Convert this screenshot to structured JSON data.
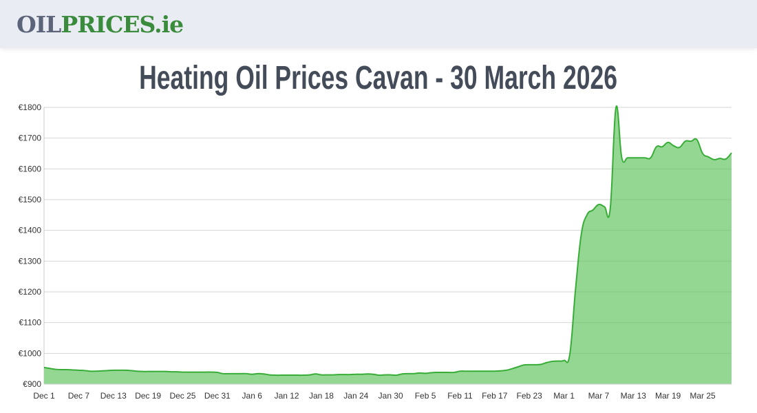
{
  "header": {
    "logo_part1": "OIL",
    "logo_part2": "PRICES.ie"
  },
  "page_title": "Heating Oil Prices Cavan - 30 March 2026",
  "colors": {
    "line": "#37ad37",
    "fill": "#93d792",
    "grid": "#e5e5e5",
    "header_bg": "#e9ecf3"
  },
  "chart_data": {
    "type": "area",
    "title": "",
    "xlabel": "",
    "ylabel": "",
    "x_start": "Dec 1",
    "x_end": "Mar 30",
    "ylim": [
      900,
      1800
    ],
    "grid": true,
    "legend": "none",
    "y_ticks": [
      "€900",
      "€1000",
      "€1100",
      "€1200",
      "€1300",
      "€1400",
      "€1500",
      "€1600",
      "€1700",
      "€1800"
    ],
    "x_ticks": [
      "Dec 1",
      "Dec 7",
      "Dec 13",
      "Dec 19",
      "Dec 25",
      "Dec 31",
      "Jan 6",
      "Jan 12",
      "Jan 18",
      "Jan 24",
      "Jan 30",
      "Feb 5",
      "Feb 11",
      "Feb 17",
      "Feb 23",
      "Mar 1",
      "Mar 7",
      "Mar 13",
      "Mar 19",
      "Mar 25"
    ],
    "values": [
      954,
      951,
      948,
      947,
      947,
      946,
      945,
      944,
      942,
      942,
      943,
      944,
      945,
      945,
      945,
      944,
      942,
      941,
      941,
      941,
      941,
      941,
      940,
      940,
      939,
      939,
      939,
      939,
      939,
      939,
      938,
      934,
      934,
      934,
      934,
      934,
      932,
      934,
      933,
      930,
      929,
      929,
      929,
      929,
      929,
      929,
      930,
      933,
      930,
      930,
      930,
      931,
      931,
      931,
      932,
      932,
      933,
      932,
      929,
      930,
      930,
      929,
      933,
      934,
      934,
      936,
      935,
      937,
      938,
      938,
      938,
      938,
      942,
      942,
      942,
      942,
      942,
      942,
      942,
      943,
      945,
      950,
      956,
      962,
      963,
      963,
      964,
      970,
      974,
      975,
      977,
      996,
      1209,
      1388,
      1451,
      1466,
      1484,
      1477,
      1470,
      1800,
      1636,
      1636,
      1636,
      1636,
      1636,
      1636,
      1672,
      1672,
      1686,
      1675,
      1670,
      1690,
      1690,
      1695,
      1650,
      1639,
      1630,
      1634,
      1632,
      1652
    ]
  }
}
